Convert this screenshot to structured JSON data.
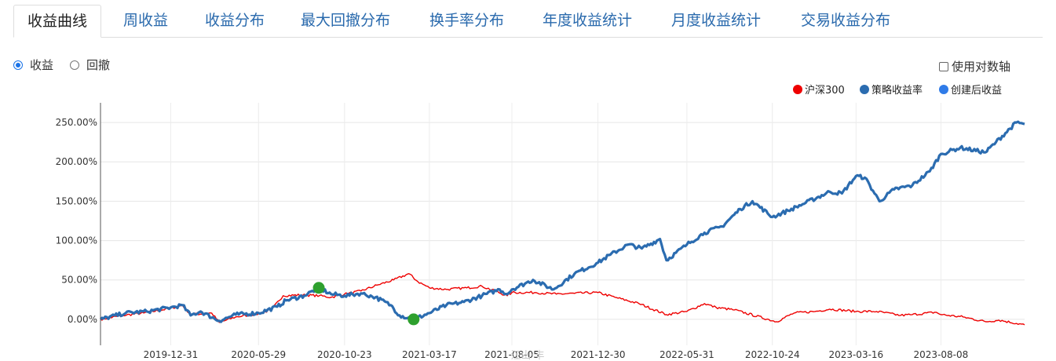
{
  "tabs": [
    {
      "label": "收益曲线",
      "active": true
    },
    {
      "label": "周收益"
    },
    {
      "label": "收益分布"
    },
    {
      "label": "最大回撤分布"
    },
    {
      "label": "换手率分布"
    },
    {
      "label": "年度收益统计"
    },
    {
      "label": "月度收益统计"
    },
    {
      "label": "交易收益分布"
    }
  ],
  "mode": {
    "options": [
      "收益",
      "回撤"
    ],
    "selected": "收益"
  },
  "log_axis_label": "使用对数轴",
  "legend": [
    {
      "name": "沪深300",
      "color": "#ee0000"
    },
    {
      "name": "策略收益率",
      "color": "#2b6cb0"
    },
    {
      "name": "创建后收益",
      "color": "#2f7be8"
    }
  ],
  "watermark": "江山·丰",
  "chart_data": {
    "type": "line",
    "x_ticks": [
      "2019-12-31",
      "2020-05-29",
      "2020-10-23",
      "2021-03-17",
      "2021-08-05",
      "2021-12-30",
      "2022-05-31",
      "2022-10-24",
      "2023-03-16",
      "2023-08-08"
    ],
    "y_ticks": [
      "0.00%",
      "50.00%",
      "100.00%",
      "150.00%",
      "200.00%",
      "250.00%"
    ],
    "ylim": [
      -33,
      275
    ],
    "x_range": [
      "2019-09-02",
      "2023-12-29"
    ],
    "grid": true,
    "legend_position": "top-right",
    "series": [
      {
        "name": "沪深300",
        "color": "#ee0000",
        "points": [
          [
            "2019-09-02",
            0
          ],
          [
            "2019-10-10",
            5
          ],
          [
            "2019-11-15",
            8
          ],
          [
            "2019-12-31",
            14
          ],
          [
            "2020-01-20",
            18
          ],
          [
            "2020-02-03",
            6
          ],
          [
            "2020-03-10",
            8
          ],
          [
            "2020-03-23",
            -4
          ],
          [
            "2020-04-20",
            3
          ],
          [
            "2020-05-29",
            7
          ],
          [
            "2020-06-20",
            12
          ],
          [
            "2020-07-10",
            30
          ],
          [
            "2020-08-10",
            31
          ],
          [
            "2020-09-10",
            30
          ],
          [
            "2020-09-30",
            28
          ],
          [
            "2020-10-23",
            32
          ],
          [
            "2020-11-20",
            36
          ],
          [
            "2020-12-20",
            44
          ],
          [
            "2021-01-15",
            50
          ],
          [
            "2021-02-10",
            58
          ],
          [
            "2021-02-25",
            48
          ],
          [
            "2021-03-17",
            40
          ],
          [
            "2021-04-15",
            38
          ],
          [
            "2021-05-20",
            40
          ],
          [
            "2021-06-15",
            42
          ],
          [
            "2021-07-28",
            30
          ],
          [
            "2021-08-05",
            34
          ],
          [
            "2021-09-15",
            34
          ],
          [
            "2021-10-20",
            32
          ],
          [
            "2021-11-20",
            33
          ],
          [
            "2021-12-30",
            34
          ],
          [
            "2022-01-28",
            28
          ],
          [
            "2022-03-10",
            20
          ],
          [
            "2022-04-26",
            6
          ],
          [
            "2022-05-31",
            10
          ],
          [
            "2022-06-30",
            20
          ],
          [
            "2022-07-20",
            15
          ],
          [
            "2022-08-20",
            12
          ],
          [
            "2022-10-31",
            -3
          ],
          [
            "2022-11-30",
            8
          ],
          [
            "2023-01-05",
            10
          ],
          [
            "2023-01-30",
            13
          ],
          [
            "2023-03-16",
            10
          ],
          [
            "2023-04-20",
            10
          ],
          [
            "2023-05-31",
            5
          ],
          [
            "2023-06-20",
            6
          ],
          [
            "2023-07-31",
            9
          ],
          [
            "2023-08-08",
            6
          ],
          [
            "2023-09-15",
            3
          ],
          [
            "2023-10-23",
            -3
          ],
          [
            "2023-11-15",
            -1
          ],
          [
            "2023-12-29",
            -7
          ]
        ]
      },
      {
        "name": "策略收益率",
        "color": "#2b6cb0",
        "points": [
          [
            "2019-09-02",
            0
          ],
          [
            "2019-10-15",
            8
          ],
          [
            "2019-11-20",
            10
          ],
          [
            "2019-12-31",
            15
          ],
          [
            "2020-01-20",
            18
          ],
          [
            "2020-02-03",
            5
          ],
          [
            "2020-02-20",
            10
          ],
          [
            "2020-03-23",
            -2
          ],
          [
            "2020-04-20",
            6
          ],
          [
            "2020-05-29",
            8
          ],
          [
            "2020-06-30",
            16
          ],
          [
            "2020-07-15",
            24
          ],
          [
            "2020-08-15",
            30
          ],
          [
            "2020-09-09",
            40
          ],
          [
            "2020-09-30",
            32
          ],
          [
            "2020-10-23",
            30
          ],
          [
            "2020-11-20",
            33
          ],
          [
            "2020-12-15",
            28
          ],
          [
            "2021-01-10",
            18
          ],
          [
            "2021-01-25",
            5
          ],
          [
            "2021-02-18",
            0
          ],
          [
            "2021-03-17",
            8
          ],
          [
            "2021-04-15",
            18
          ],
          [
            "2021-05-15",
            22
          ],
          [
            "2021-06-15",
            30
          ],
          [
            "2021-07-15",
            38
          ],
          [
            "2021-07-28",
            32
          ],
          [
            "2021-08-05",
            38
          ],
          [
            "2021-09-10",
            50
          ],
          [
            "2021-10-15",
            38
          ],
          [
            "2021-11-20",
            58
          ],
          [
            "2021-12-30",
            72
          ],
          [
            "2022-01-20",
            82
          ],
          [
            "2022-02-20",
            95
          ],
          [
            "2022-03-15",
            90
          ],
          [
            "2022-04-15",
            102
          ],
          [
            "2022-04-26",
            75
          ],
          [
            "2022-05-31",
            95
          ],
          [
            "2022-06-30",
            110
          ],
          [
            "2022-07-30",
            118
          ],
          [
            "2022-08-30",
            140
          ],
          [
            "2022-09-20",
            150
          ],
          [
            "2022-10-24",
            130
          ],
          [
            "2022-11-20",
            138
          ],
          [
            "2022-12-20",
            148
          ],
          [
            "2023-01-30",
            162
          ],
          [
            "2023-02-20",
            160
          ],
          [
            "2023-03-16",
            182
          ],
          [
            "2023-03-31",
            180
          ],
          [
            "2023-04-25",
            150
          ],
          [
            "2023-05-20",
            165
          ],
          [
            "2023-06-20",
            170
          ],
          [
            "2023-07-20",
            188
          ],
          [
            "2023-08-08",
            210
          ],
          [
            "2023-09-10",
            218
          ],
          [
            "2023-10-23",
            212
          ],
          [
            "2023-11-10",
            225
          ],
          [
            "2023-12-15",
            250
          ],
          [
            "2023-12-29",
            248
          ]
        ]
      },
      {
        "name": "创建后收益",
        "color": "#2f7be8",
        "points": []
      }
    ],
    "markers": [
      {
        "x": "2020-09-09",
        "y": 40,
        "color": "#2ea02e"
      },
      {
        "x": "2021-02-18",
        "y": 0,
        "color": "#2ea02e"
      }
    ]
  }
}
